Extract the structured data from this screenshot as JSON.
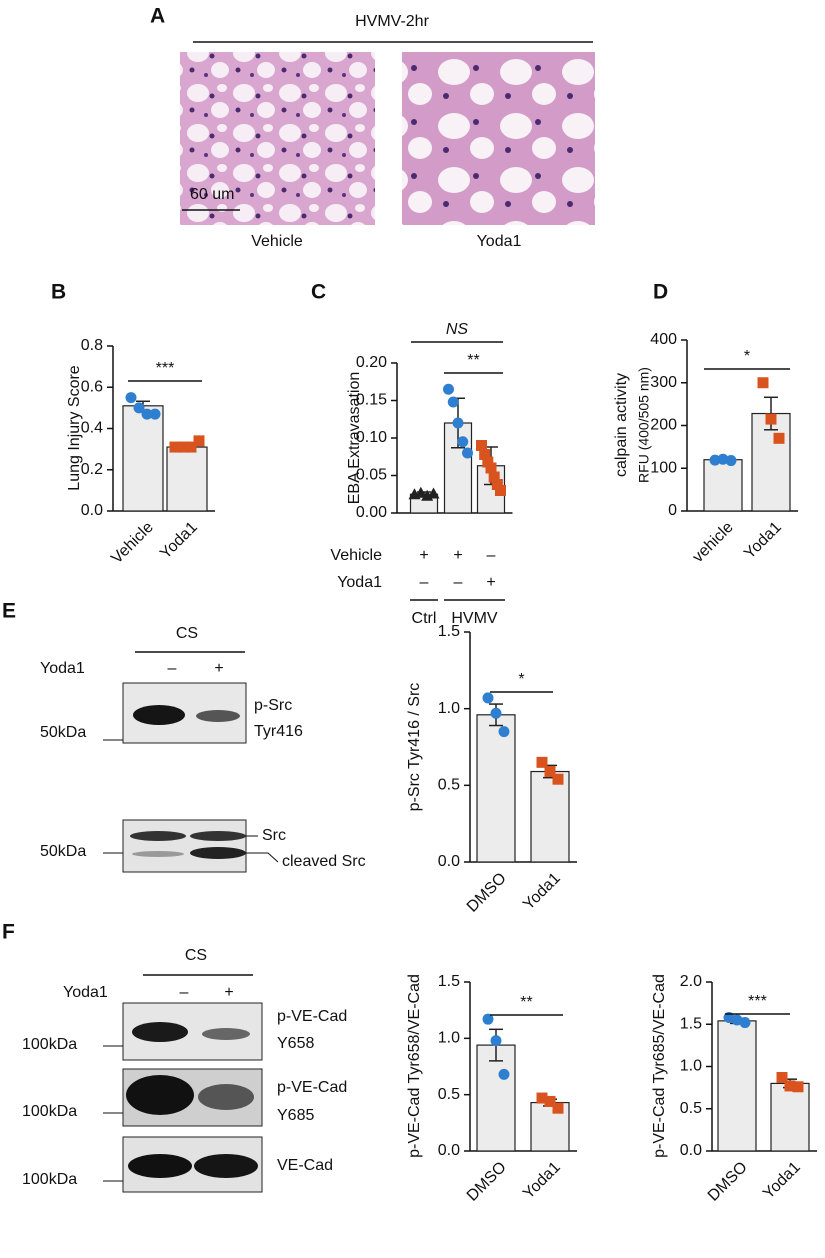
{
  "panel_labels": [
    "A",
    "B",
    "C",
    "D",
    "E",
    "F"
  ],
  "histology": {
    "title": "HVMV-2hr",
    "scale_bar": "60 um",
    "images": [
      "Vehicle",
      "Yoda1"
    ]
  },
  "blot_E": {
    "header": "CS",
    "treatment": "Yoda1",
    "signs": [
      "–",
      "+"
    ],
    "bands": [
      {
        "labels": [
          "p-Src",
          "Tyr416"
        ],
        "marker": "50kDa"
      },
      {
        "labels": [
          "Src",
          "cleaved Src"
        ],
        "marker": "50kDa"
      }
    ]
  },
  "blot_F": {
    "header": "CS",
    "treatment": "Yoda1",
    "signs": [
      "–",
      "+"
    ],
    "bands": [
      {
        "labels": [
          "p-VE-Cad",
          "Y658"
        ],
        "marker": "100kDa"
      },
      {
        "labels": [
          "p-VE-Cad",
          "Y685"
        ],
        "marker": "100kDa"
      },
      {
        "labels": [
          "VE-Cad"
        ],
        "marker": "100kDa"
      }
    ]
  },
  "chart_data": [
    {
      "type": "bar",
      "y_label": "Lung Injury Score",
      "categories": [
        "Vehicle",
        "Yoda1"
      ],
      "values": [
        0.51,
        0.31
      ],
      "errors": [
        0.022,
        0.01
      ],
      "points": [
        [
          0.55,
          0.5,
          0.47,
          0.47
        ],
        [
          0.31,
          0.31,
          0.31,
          0.34
        ]
      ],
      "point_colors": [
        "#2f7fd0",
        "#d9531e"
      ],
      "markers": [
        "circle",
        "square"
      ],
      "color": "#ececec",
      "ylim": [
        0,
        0.8
      ],
      "yticks": [
        {
          "value": 0,
          "label": "0.0"
        },
        {
          "value": 0.2,
          "label": "0.2"
        },
        {
          "value": 0.4,
          "label": "0.4"
        },
        {
          "value": 0.6,
          "label": "0.6"
        },
        {
          "value": 0.8,
          "label": "0.8"
        }
      ],
      "annotations": [
        "***"
      ]
    },
    {
      "type": "bar",
      "y_label": "EBA Extravasation",
      "categories": [
        null,
        null,
        null
      ],
      "values": [
        0.025,
        0.12,
        0.063
      ],
      "errors": [
        0.003,
        0.033,
        0.025
      ],
      "points": [
        [
          0.025,
          0.027,
          0.023,
          0.026
        ],
        [
          0.165,
          0.148,
          0.12,
          0.095,
          0.08
        ],
        [
          0.09,
          0.078,
          0.068,
          0.06,
          0.048,
          0.038,
          0.03
        ]
      ],
      "point_colors": [
        "#222222",
        "#2f7fd0",
        "#d9531e"
      ],
      "markers": [
        "triangle",
        "circle",
        "square"
      ],
      "color": "#ececec",
      "ylim": [
        0,
        0.2
      ],
      "yticks": [
        {
          "value": 0,
          "label": "0.00"
        },
        {
          "value": 0.05,
          "label": "0.05"
        },
        {
          "value": 0.1,
          "label": "0.10"
        },
        {
          "value": 0.15,
          "label": "0.15"
        },
        {
          "value": 0.2,
          "label": "0.20"
        }
      ],
      "annotations": [
        "NS",
        "**"
      ],
      "conditions": [
        {
          "label": "Vehicle",
          "signs": [
            "+",
            "+",
            "–"
          ]
        },
        {
          "label": "Yoda1",
          "signs": [
            "–",
            "–",
            "+"
          ]
        }
      ],
      "groups": [
        "Ctrl",
        "HVMV"
      ]
    },
    {
      "type": "bar",
      "y_label": [
        "calpain activity",
        "RFU (400/505 nm)"
      ],
      "categories": [
        "vehicle",
        "Yoda1"
      ],
      "values": [
        120,
        228
      ],
      "errors": [
        3,
        38
      ],
      "points": [
        [
          119,
          121,
          118
        ],
        [
          300,
          215,
          170
        ]
      ],
      "point_colors": [
        "#2f7fd0",
        "#d9531e"
      ],
      "markers": [
        "circle",
        "square"
      ],
      "color": "#ececec",
      "ylim": [
        0,
        400
      ],
      "yticks": [
        0,
        100,
        200,
        300,
        400
      ],
      "annotations": [
        "*"
      ]
    },
    {
      "type": "bar",
      "y_label": "p-Src Tyr416 / Src",
      "categories": [
        "DMSO",
        "Yoda1"
      ],
      "values": [
        0.96,
        0.59
      ],
      "errors": [
        0.07,
        0.04
      ],
      "points": [
        [
          1.07,
          0.97,
          0.85
        ],
        [
          0.65,
          0.59,
          0.54
        ]
      ],
      "point_colors": [
        "#2f7fd0",
        "#d9531e"
      ],
      "markers": [
        "circle",
        "square"
      ],
      "color": "#ececec",
      "ylim": [
        0,
        1.5
      ],
      "yticks": [
        {
          "value": 0,
          "label": "0.0"
        },
        {
          "value": 0.5,
          "label": "0.5"
        },
        {
          "value": 1,
          "label": "1.0"
        },
        {
          "value": 1.5,
          "label": "1.5"
        }
      ],
      "annotations": [
        "*"
      ]
    },
    {
      "type": "bar",
      "y_label": "p-VE-Cad Tyr658/VE-Cad",
      "categories": [
        "DMSO",
        "Yoda1"
      ],
      "values": [
        0.94,
        0.43
      ],
      "errors": [
        0.14,
        0.03
      ],
      "points": [
        [
          1.17,
          0.98,
          0.68
        ],
        [
          0.47,
          0.44,
          0.38
        ]
      ],
      "point_colors": [
        "#2f7fd0",
        "#d9531e"
      ],
      "markers": [
        "circle",
        "square"
      ],
      "color": "#ececec",
      "ylim": [
        0,
        1.5
      ],
      "yticks": [
        {
          "value": 0,
          "label": "0.0"
        },
        {
          "value": 0.5,
          "label": "0.5"
        },
        {
          "value": 1,
          "label": "1.0"
        },
        {
          "value": 1.5,
          "label": "1.5"
        }
      ],
      "annotations": [
        "**"
      ]
    },
    {
      "type": "bar",
      "y_label": "p-VE-Cad Tyr685/VE-Cad",
      "categories": [
        "DMSO",
        "Yoda1"
      ],
      "values": [
        1.54,
        0.8
      ],
      "errors": [
        0.03,
        0.05
      ],
      "points": [
        [
          1.58,
          1.55,
          1.52
        ],
        [
          0.87,
          0.77,
          0.76
        ]
      ],
      "point_colors": [
        "#2f7fd0",
        "#d9531e"
      ],
      "markers": [
        "circle",
        "square"
      ],
      "color": "#ececec",
      "ylim": [
        0,
        2
      ],
      "yticks": [
        {
          "value": 0,
          "label": "0.0"
        },
        {
          "value": 0.5,
          "label": "0.5"
        },
        {
          "value": 1,
          "label": "1.0"
        },
        {
          "value": 1.5,
          "label": "1.5"
        },
        {
          "value": 2,
          "label": "2.0"
        }
      ],
      "annotations": [
        "***"
      ]
    }
  ]
}
